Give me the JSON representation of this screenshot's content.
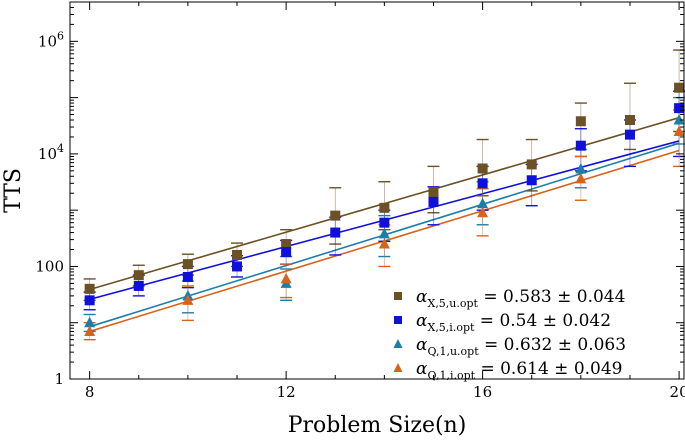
{
  "chart_data": {
    "type": "scatter",
    "xlabel": "Problem Size(n)",
    "ylabel": "TTS",
    "xlim": [
      7.6,
      20.1
    ],
    "ylim": [
      1,
      5000000
    ],
    "y_scale": "log",
    "x_ticks": [
      8,
      12,
      16,
      20
    ],
    "x_tick_labels": [
      "8",
      "12",
      "16",
      "20"
    ],
    "y_ticks": [
      1,
      100,
      10000,
      1000000
    ],
    "y_tick_labels": [
      {
        "base": "1",
        "exp": ""
      },
      {
        "base": "100",
        "exp": ""
      },
      {
        "base": "10",
        "exp": "4"
      },
      {
        "base": "10",
        "exp": "6"
      }
    ],
    "grid": false,
    "legend_position": "bottom-right",
    "x": [
      8,
      9,
      10,
      11,
      12,
      13,
      14,
      15,
      16,
      17,
      18,
      19,
      20
    ],
    "series": [
      {
        "color": "#6b5124",
        "marker": "square",
        "legend_symbol": "α",
        "legend_sub": "X,5,u.opt",
        "legend_value": " = 0.583 ± 0.044",
        "values": [
          40,
          70,
          110,
          160,
          250,
          800,
          1100,
          2100,
          5500,
          6500,
          38000,
          40000,
          150000
        ],
        "err_up": [
          60,
          105,
          165,
          260,
          450,
          2500,
          3200,
          6000,
          18000,
          18000,
          80000,
          180000,
          700000
        ],
        "err_down": [
          25,
          45,
          70,
          100,
          150,
          250,
          450,
          900,
          1800,
          2200,
          9000,
          12000,
          25000
        ],
        "fit": [
          [
            8,
            39
          ],
          [
            20,
            44000
          ]
        ]
      },
      {
        "color": "#1010dd",
        "marker": "square",
        "legend_symbol": "α",
        "legend_sub": "X,5,i.opt",
        "legend_value": " = 0.54 ± 0.042",
        "values": [
          25,
          45,
          65,
          100,
          180,
          400,
          600,
          1400,
          3000,
          3400,
          14000,
          22000,
          65000
        ],
        "err_up": [
          35,
          70,
          100,
          155,
          290,
          750,
          1000,
          2600,
          6000,
          6500,
          28000,
          40000,
          130000
        ],
        "err_down": [
          17,
          30,
          42,
          65,
          110,
          160,
          280,
          550,
          1000,
          1200,
          5000,
          6000,
          9000
        ],
        "fit": [
          [
            8,
            26
          ],
          [
            20,
            17000
          ]
        ]
      },
      {
        "color": "#1a7ea8",
        "marker": "triangle",
        "legend_symbol": "α",
        "legend_sub": "Q,1,u.opt",
        "legend_value": " = 0.632 ± 0.063",
        "values": [
          10,
          null,
          30,
          null,
          50,
          null,
          380,
          null,
          1300,
          null,
          5400,
          null,
          40000
        ],
        "err_up": [
          14,
          null,
          55,
          null,
          90,
          null,
          800,
          null,
          3200,
          null,
          12000,
          null,
          100000
        ],
        "err_down": [
          7,
          null,
          15,
          null,
          25,
          null,
          150,
          null,
          550,
          null,
          2500,
          null,
          15000
        ],
        "fit": [
          [
            8,
            8.5
          ],
          [
            20,
            15500
          ]
        ]
      },
      {
        "color": "#d9621a",
        "marker": "triangle",
        "legend_symbol": "α",
        "legend_sub": "Q,1,i.opt",
        "legend_value": " = 0.614 ± 0.049",
        "values": [
          7,
          null,
          25,
          null,
          60,
          null,
          250,
          null,
          900,
          null,
          3600,
          null,
          25000
        ],
        "err_up": [
          10,
          null,
          45,
          null,
          110,
          null,
          550,
          null,
          2400,
          null,
          9000,
          null,
          60000
        ],
        "err_down": [
          5,
          null,
          11,
          null,
          28,
          null,
          100,
          null,
          350,
          null,
          1500,
          null,
          6000
        ],
        "fit": [
          [
            8,
            7
          ],
          [
            20,
            11500
          ]
        ]
      }
    ]
  }
}
